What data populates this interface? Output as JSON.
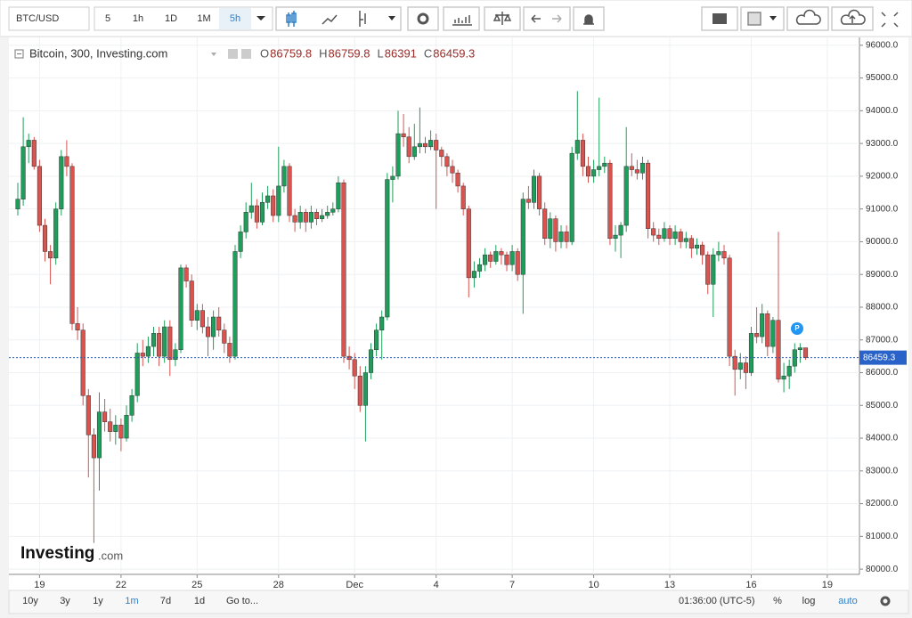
{
  "ui": {
    "symbol": "BTC/USD",
    "intervals": [
      "5",
      "1h",
      "1D",
      "1M",
      "5h"
    ],
    "ranges": [
      "10y",
      "3y",
      "1y",
      "1m",
      "7d",
      "1d"
    ],
    "goto": "Go to...",
    "clock": "01:36:00 (UTC-5)",
    "scale_buttons": [
      "%",
      "log",
      "auto"
    ],
    "logo": "Investing",
    "logo_suffix": ".com",
    "ohlc_prefixes": [
      "O",
      "H",
      "L",
      "C"
    ]
  },
  "chart_data": {
    "type": "candlestick",
    "title": "Bitcoin, 300, Investing.com",
    "up_color": "#1e9e5a",
    "down_color": "#d9534f",
    "grid": true,
    "ylim": [
      79840,
      96240
    ],
    "yticks": [
      {
        "value": 80000,
        "label": "80000.0"
      },
      {
        "value": 81000,
        "label": "81000.0"
      },
      {
        "value": 82000,
        "label": "82000.0"
      },
      {
        "value": 83000,
        "label": "83000.0"
      },
      {
        "value": 84000,
        "label": "84000.0"
      },
      {
        "value": 85000,
        "label": "85000.0"
      },
      {
        "value": 86000,
        "label": "86000.0"
      },
      {
        "value": 87000,
        "label": "87000.0"
      },
      {
        "value": 88000,
        "label": "88000.0"
      },
      {
        "value": 89000,
        "label": "89000.0"
      },
      {
        "value": 90000,
        "label": "90000.0"
      },
      {
        "value": 91000,
        "label": "91000.0"
      },
      {
        "value": 92000,
        "label": "92000.0"
      },
      {
        "value": 93000,
        "label": "93000.0"
      },
      {
        "value": 94000,
        "label": "94000.0"
      },
      {
        "value": 95000,
        "label": "95000.0"
      },
      {
        "value": 96000,
        "label": "96000.0"
      }
    ],
    "categories": [
      null,
      null,
      null,
      null,
      "19",
      null,
      null,
      null,
      null,
      null,
      null,
      null,
      null,
      null,
      null,
      null,
      null,
      null,
      null,
      "22",
      null,
      null,
      null,
      null,
      null,
      null,
      null,
      null,
      null,
      null,
      null,
      null,
      null,
      "25",
      null,
      null,
      null,
      null,
      null,
      null,
      null,
      null,
      null,
      null,
      null,
      null,
      null,
      null,
      "28",
      null,
      null,
      null,
      null,
      null,
      null,
      null,
      null,
      null,
      null,
      null,
      null,
      null,
      "Dec",
      null,
      null,
      null,
      null,
      null,
      null,
      null,
      null,
      null,
      null,
      null,
      null,
      null,
      null,
      "4",
      null,
      null,
      null,
      null,
      null,
      null,
      null,
      null,
      null,
      null,
      null,
      null,
      null,
      "7",
      null,
      null,
      null,
      null,
      null,
      null,
      null,
      null,
      null,
      null,
      null,
      null,
      null,
      null,
      "10",
      null,
      null,
      null,
      null,
      null,
      null,
      null,
      null,
      null,
      null,
      null,
      null,
      null,
      "13",
      null,
      null,
      null,
      null,
      null,
      null,
      null,
      null,
      null,
      null,
      null,
      null,
      null,
      null,
      "16",
      null,
      null,
      null,
      null,
      null,
      null,
      null,
      null,
      null,
      null,
      null,
      null,
      null,
      "19"
    ],
    "ohlc": [
      [
        91000,
        91800,
        90800,
        91300
      ],
      [
        91300,
        93800,
        91100,
        92900
      ],
      [
        92900,
        93300,
        92400,
        93100
      ],
      [
        93100,
        93200,
        92200,
        92300
      ],
      [
        92300,
        92500,
        90300,
        90500
      ],
      [
        90500,
        90700,
        89400,
        89700
      ],
      [
        89700,
        89900,
        88700,
        89500
      ],
      [
        89500,
        91200,
        89300,
        91000
      ],
      [
        91000,
        92800,
        90800,
        92600
      ],
      [
        92600,
        93100,
        92000,
        92300
      ],
      [
        92300,
        92400,
        87300,
        87500
      ],
      [
        87500,
        88000,
        87000,
        87300
      ],
      [
        87300,
        87500,
        85000,
        85300
      ],
      [
        85300,
        85500,
        82800,
        84100
      ],
      [
        84100,
        84300,
        80800,
        83400
      ],
      [
        83400,
        85400,
        82400,
        84800
      ],
      [
        84800,
        85200,
        84200,
        84500
      ],
      [
        84500,
        84900,
        83900,
        84200
      ],
      [
        84200,
        84700,
        83800,
        84400
      ],
      [
        84400,
        84600,
        83600,
        84000
      ],
      [
        84000,
        85000,
        83900,
        84700
      ],
      [
        84700,
        85500,
        84500,
        85300
      ],
      [
        85300,
        86900,
        85100,
        86600
      ],
      [
        86600,
        87000,
        86200,
        86500
      ],
      [
        86500,
        87100,
        86300,
        86800
      ],
      [
        86800,
        87400,
        86500,
        87200
      ],
      [
        87200,
        87400,
        86200,
        86500
      ],
      [
        86500,
        87600,
        86300,
        87400
      ],
      [
        87400,
        87600,
        85900,
        86400
      ],
      [
        86400,
        86900,
        86200,
        86700
      ],
      [
        86700,
        89300,
        86600,
        89200
      ],
      [
        89200,
        89300,
        88600,
        88800
      ],
      [
        88800,
        89000,
        87400,
        87600
      ],
      [
        87600,
        88100,
        87300,
        87900
      ],
      [
        87900,
        88100,
        87200,
        87400
      ],
      [
        87400,
        87700,
        86500,
        87100
      ],
      [
        87100,
        87900,
        86700,
        87700
      ],
      [
        87700,
        88000,
        87100,
        87300
      ],
      [
        87300,
        87500,
        86600,
        86900
      ],
      [
        86900,
        87100,
        86300,
        86500
      ],
      [
        86500,
        89900,
        86400,
        89700
      ],
      [
        89700,
        90500,
        89500,
        90300
      ],
      [
        90300,
        91200,
        90100,
        90900
      ],
      [
        90900,
        91800,
        90700,
        91100
      ],
      [
        91100,
        91300,
        90400,
        90600
      ],
      [
        90600,
        91500,
        90500,
        91200
      ],
      [
        91200,
        91700,
        91000,
        91400
      ],
      [
        91400,
        91600,
        90600,
        90800
      ],
      [
        90800,
        92900,
        90600,
        91700
      ],
      [
        91700,
        92500,
        91500,
        92300
      ],
      [
        92300,
        92400,
        90600,
        90800
      ],
      [
        90800,
        91000,
        90300,
        90600
      ],
      [
        90600,
        91100,
        90400,
        90900
      ],
      [
        90900,
        91000,
        90300,
        90600
      ],
      [
        90600,
        91100,
        90400,
        90900
      ],
      [
        90900,
        91000,
        90500,
        90700
      ],
      [
        90700,
        91000,
        90600,
        90800
      ],
      [
        90800,
        91100,
        90700,
        90900
      ],
      [
        90900,
        91200,
        90800,
        91000
      ],
      [
        91000,
        92000,
        90900,
        91800
      ],
      [
        91800,
        91900,
        86300,
        86500
      ],
      [
        86500,
        86800,
        86100,
        86400
      ],
      [
        86400,
        86600,
        85500,
        85900
      ],
      [
        85900,
        86200,
        84800,
        85000
      ],
      [
        85000,
        86200,
        83900,
        86000
      ],
      [
        86000,
        86900,
        85800,
        86700
      ],
      [
        86700,
        87500,
        86500,
        87300
      ],
      [
        87300,
        87900,
        86400,
        87700
      ],
      [
        87700,
        92100,
        87600,
        91900
      ],
      [
        91900,
        92300,
        91200,
        92000
      ],
      [
        92000,
        94000,
        91900,
        93300
      ],
      [
        93300,
        93900,
        92900,
        93200
      ],
      [
        93200,
        93500,
        92400,
        92600
      ],
      [
        92600,
        93600,
        92500,
        92900
      ],
      [
        92900,
        94100,
        92700,
        93000
      ],
      [
        93000,
        93200,
        92700,
        92900
      ],
      [
        92900,
        93400,
        92800,
        93100
      ],
      [
        93100,
        93300,
        91000,
        92800
      ],
      [
        92800,
        92900,
        92300,
        92600
      ],
      [
        92600,
        92700,
        92000,
        92300
      ],
      [
        92300,
        92500,
        91800,
        92100
      ],
      [
        92100,
        92200,
        91500,
        91700
      ],
      [
        91700,
        91800,
        90800,
        91000
      ],
      [
        91000,
        91100,
        88300,
        88900
      ],
      [
        88900,
        89400,
        88600,
        89100
      ],
      [
        89100,
        89500,
        88900,
        89300
      ],
      [
        89300,
        89800,
        89100,
        89600
      ],
      [
        89600,
        89700,
        89200,
        89400
      ],
      [
        89400,
        89900,
        89300,
        89700
      ],
      [
        89700,
        89800,
        89300,
        89600
      ],
      [
        89600,
        89700,
        89100,
        89300
      ],
      [
        89300,
        89900,
        89100,
        89700
      ],
      [
        89700,
        89800,
        88800,
        89000
      ],
      [
        89000,
        91500,
        87800,
        91300
      ],
      [
        91300,
        91700,
        91000,
        91200
      ],
      [
        91200,
        92200,
        91000,
        92000
      ],
      [
        92000,
        92100,
        90800,
        91000
      ],
      [
        91000,
        91200,
        89900,
        90100
      ],
      [
        90100,
        90900,
        89800,
        90700
      ],
      [
        90700,
        90800,
        89700,
        90000
      ],
      [
        90000,
        90500,
        89800,
        90300
      ],
      [
        90300,
        90500,
        89800,
        90000
      ],
      [
        90000,
        92900,
        89900,
        92700
      ],
      [
        92700,
        94600,
        92500,
        93100
      ],
      [
        93100,
        93300,
        92000,
        92300
      ],
      [
        92300,
        92600,
        91800,
        92000
      ],
      [
        92000,
        92500,
        91800,
        92200
      ],
      [
        92200,
        94400,
        92000,
        92300
      ],
      [
        92300,
        92600,
        92100,
        92400
      ],
      [
        92400,
        92500,
        89900,
        90100
      ],
      [
        90100,
        90500,
        89700,
        90200
      ],
      [
        90200,
        90600,
        89500,
        90500
      ],
      [
        90500,
        93500,
        90300,
        92300
      ],
      [
        92300,
        92700,
        92000,
        92200
      ],
      [
        92200,
        92500,
        91900,
        92100
      ],
      [
        92100,
        92600,
        91900,
        92400
      ],
      [
        92400,
        92500,
        90100,
        90400
      ],
      [
        90400,
        90600,
        90000,
        90200
      ],
      [
        90200,
        90400,
        89900,
        90100
      ],
      [
        90100,
        90600,
        90000,
        90400
      ],
      [
        90400,
        90500,
        89900,
        90100
      ],
      [
        90100,
        90500,
        89900,
        90300
      ],
      [
        90300,
        90400,
        89800,
        90000
      ],
      [
        90000,
        90300,
        89800,
        90100
      ],
      [
        90100,
        90200,
        89500,
        89800
      ],
      [
        89800,
        90100,
        89600,
        89900
      ],
      [
        89900,
        90000,
        89300,
        89600
      ],
      [
        89600,
        89700,
        88400,
        88700
      ],
      [
        88700,
        89800,
        87700,
        89600
      ],
      [
        89600,
        90000,
        89400,
        89700
      ],
      [
        89700,
        89900,
        89300,
        89500
      ],
      [
        89500,
        89600,
        86200,
        86500
      ],
      [
        86500,
        86700,
        85300,
        86100
      ],
      [
        86100,
        86600,
        85800,
        86300
      ],
      [
        86300,
        86500,
        85500,
        86000
      ],
      [
        86000,
        87400,
        85900,
        87200
      ],
      [
        87200,
        88000,
        86900,
        87100
      ],
      [
        87100,
        88100,
        86900,
        87800
      ],
      [
        87800,
        87900,
        86500,
        86800
      ],
      [
        86800,
        87700,
        86600,
        87600
      ],
      [
        87600,
        90300,
        85700,
        85800
      ],
      [
        85800,
        86300,
        85400,
        85900
      ],
      [
        85900,
        86400,
        85500,
        86200
      ],
      [
        86200,
        86900,
        86000,
        86700
      ],
      [
        86700,
        86900,
        86300,
        86759.8
      ],
      [
        86759.8,
        86759.8,
        86391,
        86459.3
      ],
      null,
      null,
      null,
      null
    ]
  }
}
